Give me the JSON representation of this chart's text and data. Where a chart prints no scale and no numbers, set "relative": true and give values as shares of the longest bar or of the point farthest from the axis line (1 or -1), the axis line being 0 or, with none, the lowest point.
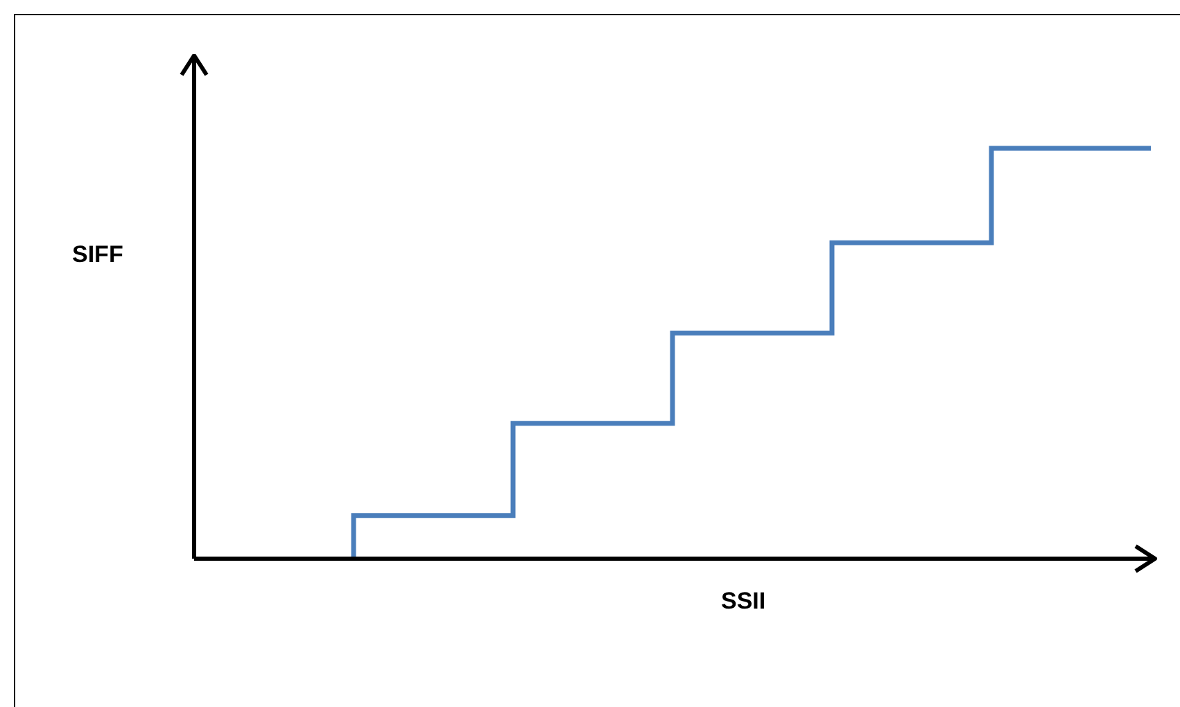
{
  "chart_data": {
    "type": "step",
    "relative": true,
    "xlabel": "SSII",
    "ylabel": "SIFF",
    "categories": [
      null,
      null,
      null,
      null,
      null,
      null
    ],
    "values": [
      0,
      0.105,
      0.33,
      0.55,
      0.77,
      1
    ],
    "color": "#4a7ebb",
    "marker": "none",
    "line_style": "solid"
  }
}
